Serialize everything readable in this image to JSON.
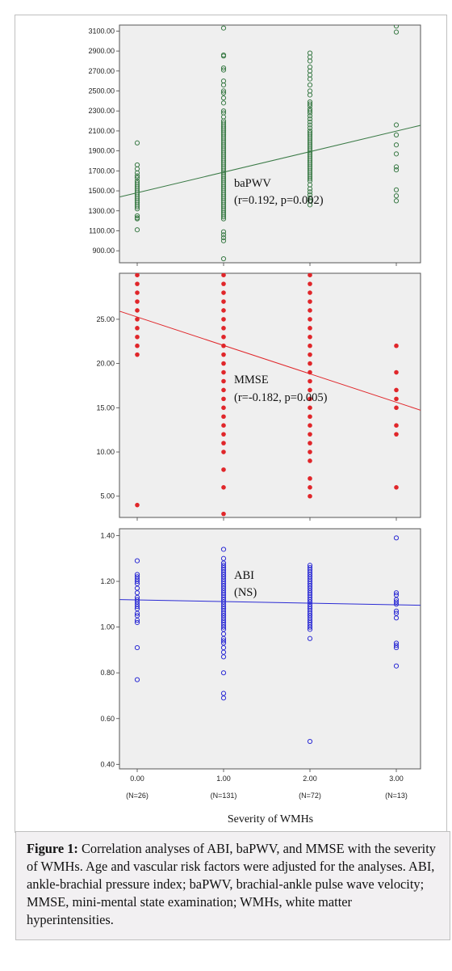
{
  "chart_data": [
    {
      "type": "scatter",
      "ylim": [
        780,
        3160
      ],
      "yticks": [
        900,
        1100,
        1300,
        1500,
        1700,
        1900,
        2100,
        2300,
        2500,
        2700,
        2900,
        3100
      ],
      "tick_labels": [
        "900.00",
        "1100.00",
        "1300.00",
        "1500.00",
        "1700.00",
        "1900.00",
        "2100.00",
        "2300.00",
        "2500.00",
        "2700.00",
        "2900.00",
        "3100.00"
      ],
      "annotation": [
        "baPWV",
        "(r=0.192, p=0.002)"
      ],
      "marker": "open-circle",
      "color": "#3a7a46",
      "fit_line": {
        "start": [
          -0.2,
          1440
        ],
        "end": [
          3.35,
          2170
        ]
      },
      "series": [
        {
          "x": 0,
          "y": [
            1980,
            1760,
            1720,
            1680,
            1650,
            1630,
            1600,
            1580,
            1560,
            1540,
            1520,
            1500,
            1480,
            1460,
            1440,
            1420,
            1400,
            1380,
            1360,
            1340,
            1320,
            1250,
            1230,
            1220,
            1110
          ]
        },
        {
          "x": 1,
          "y": [
            3130,
            2860,
            2850,
            2730,
            2710,
            2600,
            2560,
            2500,
            2480,
            2430,
            2380,
            2300,
            2280,
            2240,
            2200,
            2180,
            2160,
            2140,
            2120,
            2100,
            2080,
            2060,
            2040,
            2020,
            2000,
            1980,
            1960,
            1940,
            1920,
            1900,
            1880,
            1860,
            1840,
            1820,
            1800,
            1780,
            1760,
            1740,
            1720,
            1700,
            1680,
            1660,
            1640,
            1620,
            1600,
            1580,
            1560,
            1540,
            1520,
            1500,
            1480,
            1460,
            1440,
            1420,
            1400,
            1380,
            1360,
            1340,
            1320,
            1300,
            1280,
            1260,
            1240,
            1220,
            1090,
            1060,
            1030,
            1000,
            820
          ]
        },
        {
          "x": 2,
          "y": [
            2880,
            2840,
            2800,
            2740,
            2700,
            2660,
            2620,
            2560,
            2500,
            2460,
            2390,
            2370,
            2350,
            2320,
            2300,
            2280,
            2250,
            2220,
            2190,
            2160,
            2130,
            2100,
            2080,
            2060,
            2040,
            2020,
            2000,
            1980,
            1960,
            1940,
            1920,
            1900,
            1880,
            1860,
            1840,
            1820,
            1800,
            1780,
            1760,
            1740,
            1720,
            1700,
            1680,
            1660,
            1640,
            1620,
            1600,
            1560,
            1520,
            1490,
            1460,
            1430,
            1400,
            1360
          ]
        },
        {
          "x": 3,
          "y": [
            3150,
            3090,
            2160,
            2060,
            1960,
            1870,
            1740,
            1710,
            1510,
            1450,
            1400
          ]
        }
      ]
    },
    {
      "type": "scatter",
      "ylim": [
        2.6,
        30.2
      ],
      "yticks": [
        5,
        10,
        15,
        20,
        25
      ],
      "tick_labels": [
        "5.00",
        "10.00",
        "15.00",
        "20.00",
        "25.00"
      ],
      "annotation": [
        "MMSE",
        "(r=-0.182, p=0.005)"
      ],
      "marker": "filled-circle",
      "color": "#e0262a",
      "fit_line": {
        "start": [
          -0.2,
          25.9
        ],
        "end": [
          3.35,
          14.5
        ]
      },
      "series": [
        {
          "x": 0,
          "y": [
            30,
            29,
            28,
            27,
            26,
            25,
            24,
            23,
            22,
            21,
            4
          ]
        },
        {
          "x": 1,
          "y": [
            30,
            29,
            28,
            27,
            26,
            25,
            24,
            23,
            22,
            21,
            20,
            19,
            18,
            17,
            16,
            15,
            14,
            13,
            12,
            11,
            10,
            8,
            6,
            3
          ]
        },
        {
          "x": 2,
          "y": [
            30,
            29,
            28,
            27,
            26,
            25,
            24,
            23,
            22,
            21,
            20,
            19,
            18,
            17,
            16,
            15,
            14,
            13,
            12,
            11,
            10,
            9,
            7,
            6,
            5
          ]
        },
        {
          "x": 3,
          "y": [
            22,
            19,
            17,
            16,
            15,
            13,
            12,
            6
          ]
        }
      ]
    },
    {
      "type": "scatter",
      "ylim": [
        0.38,
        1.43
      ],
      "yticks": [
        0.4,
        0.6,
        0.8,
        1.0,
        1.2,
        1.4
      ],
      "tick_labels": [
        "0.40",
        "0.60",
        "0.80",
        "1.00",
        "1.20",
        "1.40"
      ],
      "annotation": [
        "ABI",
        "(NS)"
      ],
      "marker": "open-circle",
      "color": "#2b2bd4",
      "fit_line": {
        "start": [
          -0.2,
          1.12
        ],
        "end": [
          3.35,
          1.095
        ]
      },
      "series": [
        {
          "x": 0,
          "y": [
            1.29,
            1.23,
            1.22,
            1.21,
            1.2,
            1.19,
            1.17,
            1.15,
            1.13,
            1.12,
            1.11,
            1.1,
            1.09,
            1.08,
            1.06,
            1.05,
            1.03,
            1.02,
            0.91,
            0.77
          ]
        },
        {
          "x": 1,
          "y": [
            1.34,
            1.3,
            1.28,
            1.27,
            1.26,
            1.25,
            1.24,
            1.23,
            1.22,
            1.21,
            1.2,
            1.19,
            1.18,
            1.17,
            1.16,
            1.15,
            1.14,
            1.13,
            1.12,
            1.11,
            1.1,
            1.09,
            1.08,
            1.07,
            1.06,
            1.05,
            1.04,
            1.03,
            1.02,
            1.01,
            1.0,
            0.99,
            0.97,
            0.95,
            0.94,
            0.93,
            0.91,
            0.89,
            0.87,
            0.8,
            0.71,
            0.69
          ]
        },
        {
          "x": 2,
          "y": [
            1.27,
            1.26,
            1.25,
            1.24,
            1.23,
            1.22,
            1.21,
            1.2,
            1.19,
            1.18,
            1.17,
            1.16,
            1.15,
            1.14,
            1.13,
            1.12,
            1.11,
            1.1,
            1.09,
            1.08,
            1.07,
            1.06,
            1.05,
            1.04,
            1.03,
            1.02,
            1.01,
            1.0,
            0.99,
            0.95,
            0.5
          ]
        },
        {
          "x": 3,
          "y": [
            1.39,
            1.15,
            1.14,
            1.12,
            1.11,
            1.1,
            1.07,
            1.06,
            1.04,
            0.93,
            0.92,
            0.91,
            0.83
          ]
        }
      ]
    }
  ],
  "x_axis": {
    "ticks": [
      0,
      1,
      2,
      3
    ],
    "tick_labels": [
      "0.00",
      "1.00",
      "2.00",
      "3.00"
    ],
    "counts": [
      "(N=26)",
      "(N=131)",
      "(N=72)",
      "(N=13)"
    ],
    "xlabel": "Severity of WMHs"
  },
  "caption": {
    "label": "Figure 1:",
    "text": " Correlation analyses of ABI, baPWV, and MMSE with the severity of WMHs. Age and vascular risk factors were adjusted for the analyses. ABI, ankle-brachial pressure index; baPWV, brachial-ankle pulse wave velocity; MMSE, mini-mental state examination; WMHs, white matter hyperintensities."
  }
}
